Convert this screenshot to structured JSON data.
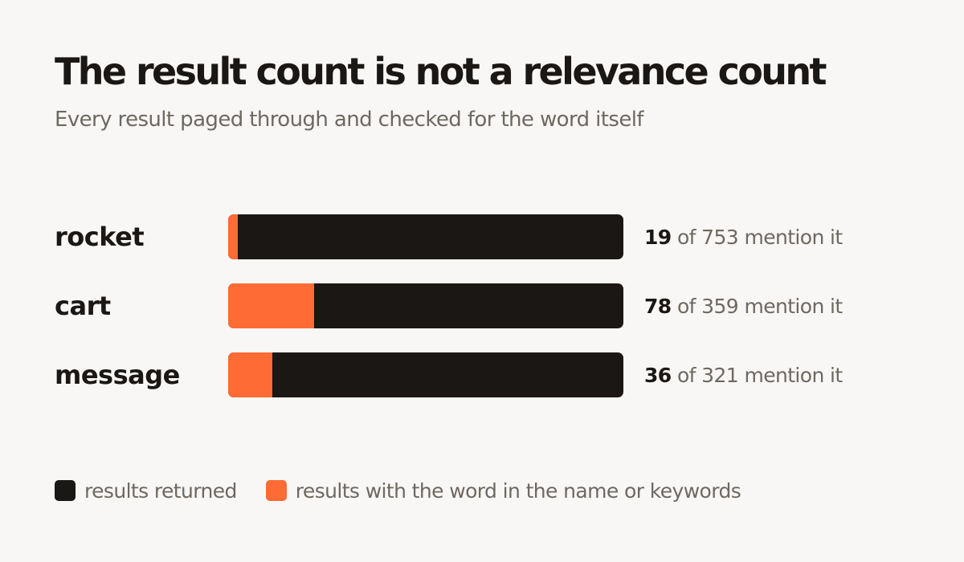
{
  "header": {
    "title": "The result count is not a relevance count",
    "subtitle": "Every result paged through and checked for the word itself"
  },
  "colors": {
    "returned": "#1a1714",
    "matching": "#ff6b35",
    "background": "#f9f7f5",
    "muted_text": "#6e6862"
  },
  "chart_data": {
    "type": "bar",
    "orientation": "horizontal",
    "stacked": "overlay",
    "categories": [
      "rocket",
      "cart",
      "message"
    ],
    "series": [
      {
        "name": "results returned",
        "values": [
          753,
          359,
          321
        ]
      },
      {
        "name": "results with the word in the name or keywords",
        "values": [
          19,
          78,
          36
        ]
      }
    ],
    "legend_position": "bottom-left",
    "grid": false
  },
  "rows": [
    {
      "label": "rocket",
      "match": "19",
      "suffix": " of 753 mention it"
    },
    {
      "label": "cart",
      "match": "78",
      "suffix": " of 359 mention it"
    },
    {
      "label": "message",
      "match": "36",
      "suffix": " of 321 mention it"
    }
  ],
  "legend": {
    "items": [
      {
        "label": "results returned"
      },
      {
        "label": "results with the word in the name or keywords"
      }
    ]
  }
}
